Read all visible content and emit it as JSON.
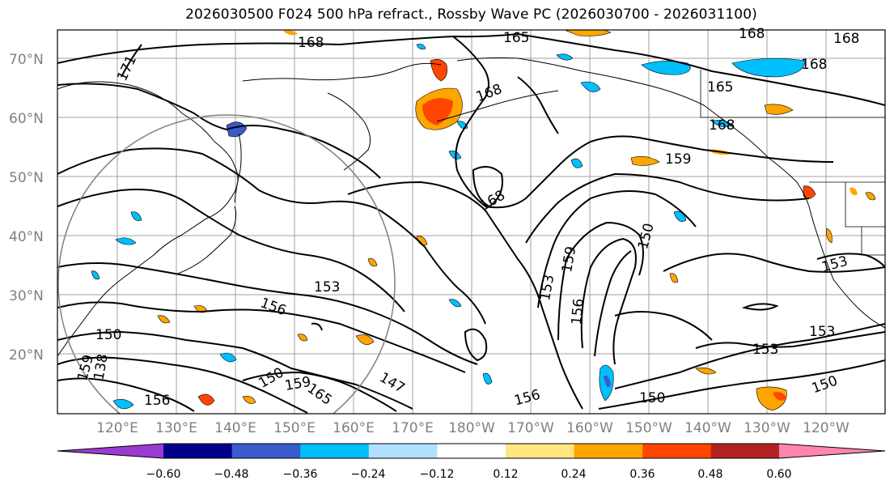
{
  "title": "2026030500 F024 500 hPa refract., Rossby Wave PC (2026030700 - 2026031100)",
  "latitude_labels": [
    "70°N",
    "60°N",
    "50°N",
    "40°N",
    "30°N",
    "20°N"
  ],
  "longitude_labels": [
    "120°E",
    "130°E",
    "140°E",
    "150°E",
    "160°E",
    "170°E",
    "180°W",
    "170°W",
    "160°W",
    "150°W",
    "140°W",
    "130°W",
    "120°W"
  ],
  "colorbar": {
    "colors": [
      "#9a3bd0",
      "#00008b",
      "#3a5acd",
      "#00bfff",
      "#b0e0ff",
      "#ffffff",
      "#ffe680",
      "#ffa500",
      "#ff4500",
      "#b22222",
      "#ff85b0"
    ],
    "tick_labels": [
      "−0.60",
      "−0.48",
      "−0.36",
      "−0.24",
      "−0.12",
      "0.12",
      "0.24",
      "0.36",
      "0.48",
      "0.60"
    ]
  },
  "contour_labels": [
    {
      "text": "168"
    },
    {
      "text": "165"
    },
    {
      "text": "168"
    },
    {
      "text": "168"
    },
    {
      "text": "168"
    },
    {
      "text": "171"
    },
    {
      "text": "165"
    },
    {
      "text": "168"
    },
    {
      "text": "168"
    },
    {
      "text": "159"
    },
    {
      "text": "168"
    },
    {
      "text": "153"
    },
    {
      "text": "156"
    },
    {
      "text": "150"
    },
    {
      "text": "153"
    },
    {
      "text": "159"
    },
    {
      "text": "150"
    },
    {
      "text": "156"
    },
    {
      "text": "153"
    },
    {
      "text": "153"
    },
    {
      "text": "153"
    },
    {
      "text": "150"
    },
    {
      "text": "150"
    },
    {
      "text": "156"
    },
    {
      "text": "147"
    },
    {
      "text": "150"
    },
    {
      "text": "159"
    },
    {
      "text": "165"
    },
    {
      "text": "156"
    },
    {
      "text": "159"
    },
    {
      "text": "138"
    }
  ]
}
